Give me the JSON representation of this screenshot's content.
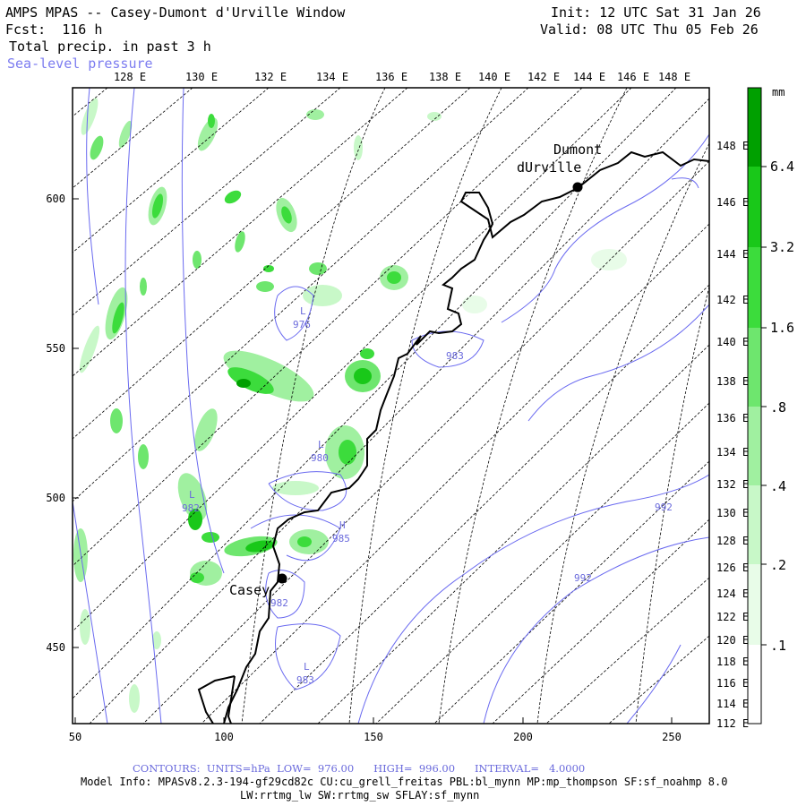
{
  "header": {
    "title": "AMPS MPAS -- Casey-Dumont d'Urville Window",
    "forecast": "Fcst:  116 h",
    "field": "Total precip. in past 3 h",
    "contour_field": "Sea-level pressure",
    "init": "Init: 12 UTC Sat 31 Jan 26",
    "valid": "Valid: 08 UTC Thu 05 Feb 26"
  },
  "axes": {
    "top_lon_labels": [
      "128 E",
      "130 E",
      "132 E",
      "134 E",
      "136 E",
      "138 E",
      "140 E",
      "142 E",
      "144 E",
      "146 E",
      "148 E"
    ],
    "left_y_labels": [
      "600",
      "550",
      "500",
      "450"
    ],
    "bottom_x_labels": [
      "50",
      "100",
      "150",
      "200",
      "250"
    ],
    "right_lat_labels": [
      "148 E",
      "146 E",
      "144 E",
      "142 E",
      "140 E",
      "138 E",
      "136 E",
      "134 E",
      "132 E",
      "130 E",
      "128 E",
      "126 E",
      "124 E",
      "122 E",
      "120 E",
      "118 E",
      "116 E",
      "114 E",
      "112 E"
    ]
  },
  "colorbar": {
    "units": "mm",
    "labels": [
      "6.4",
      "3.2",
      "1.6",
      ".8",
      ".4",
      ".2",
      ".1"
    ],
    "colors": [
      "#00a000",
      "#19c819",
      "#3cdc3c",
      "#6ee66e",
      "#a0f0a0",
      "#c8f8c8",
      "#e8fce8"
    ]
  },
  "places": {
    "dumont_line1": "Dumont",
    "dumont_line2": "dUrville",
    "casey": "Casey"
  },
  "pressure_labels": [
    {
      "letter": "L",
      "value": "976"
    },
    {
      "letter": "",
      "value": "983"
    },
    {
      "letter": "L",
      "value": "980"
    },
    {
      "letter": "L",
      "value": "982"
    },
    {
      "letter": "H",
      "value": "985"
    },
    {
      "letter": "",
      "value": "982"
    },
    {
      "letter": "L",
      "value": "983"
    },
    {
      "letter": "",
      "value": "992"
    },
    {
      "letter": "",
      "value": "992"
    }
  ],
  "footer": {
    "contours": "CONTOURS:  UNITS=hPa  LOW=  976.00      HIGH=  996.00      INTERVAL=   4.0000",
    "model_info": "Model Info: MPASv8.2.3-194-gf29cd82c CU:cu_grell_freitas PBL:bl_mynn MP:mp_thompson SF:sf_noahmp 8.0",
    "model_info2": "LW:rrtmg_lw SW:rrtmg_sw SFLAY:sf_mynn"
  }
}
